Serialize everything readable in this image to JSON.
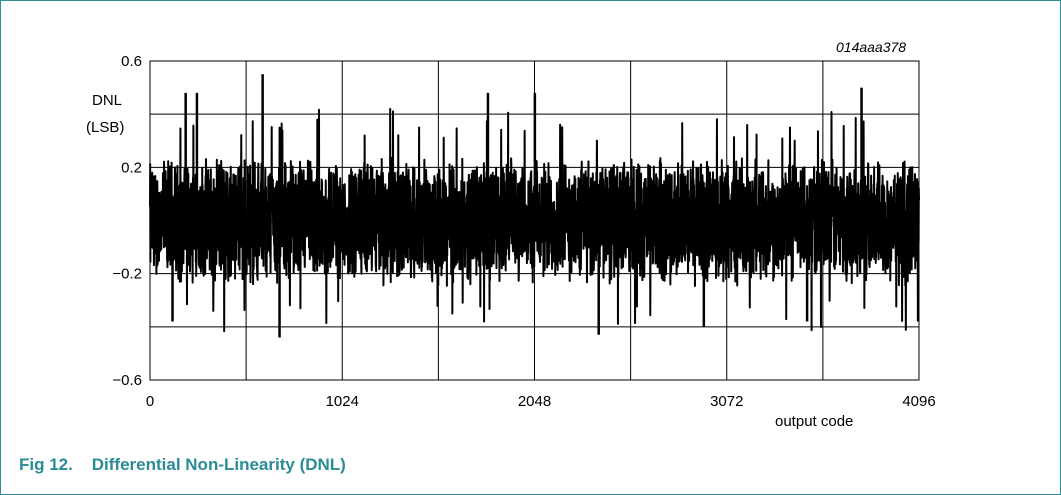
{
  "chart_data": {
    "type": "line",
    "figure_id": "014aaa378",
    "ylabel_line1": "DNL",
    "ylabel_line2": "(LSB)",
    "xlabel": "output code",
    "xlim": [
      0,
      4096
    ],
    "ylim": [
      -0.6,
      0.6
    ],
    "x_tick_labels": [
      "0",
      "1024",
      "2048",
      "3072",
      "4096"
    ],
    "x_tick_values": [
      0,
      1024,
      2048,
      3072,
      4096
    ],
    "y_tick_labels": [
      "0.6",
      "0.2",
      "−0.2",
      "−0.6"
    ],
    "y_tick_values": [
      0.6,
      0.2,
      -0.2,
      -0.6
    ],
    "grid": true,
    "series": [
      {
        "stroke": "#000000",
        "noise_amplitude": 0.25,
        "max_peak": 0.55,
        "min_peak": -0.46,
        "point_count": 4096
      }
    ]
  },
  "caption": {
    "number": "Fig 12.",
    "title": "Differential Non-Linearity (DNL)"
  },
  "colors": {
    "frame": "#2a8c95",
    "caption": "#2a8c95",
    "grid": "#000000"
  }
}
